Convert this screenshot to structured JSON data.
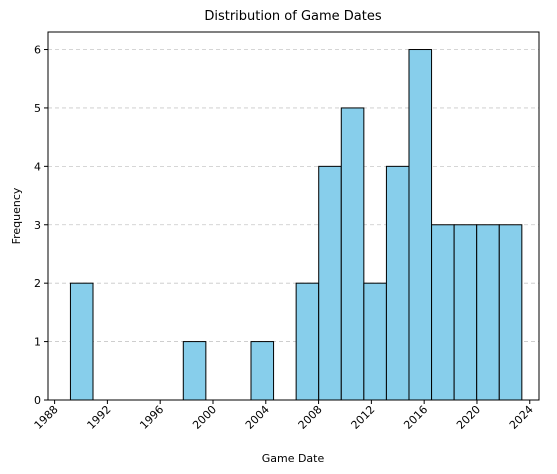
{
  "chart_data": {
    "type": "histogram",
    "title": "Distribution of Game Dates",
    "x_label": "Game Date",
    "y_label": "Frequency",
    "bins": [
      1989.2,
      1990.91,
      1992.62,
      1994.33,
      1996.04,
      1997.75,
      1999.46,
      2001.17,
      2002.88,
      2004.59,
      2006.3,
      2008.01,
      2009.72,
      2011.43,
      2013.14,
      2014.85,
      2016.56,
      2018.27,
      2019.98,
      2021.69,
      2023.4
    ],
    "values": [
      2,
      0,
      0,
      0,
      0,
      1,
      0,
      0,
      1,
      0,
      2,
      4,
      5,
      2,
      4,
      6,
      3,
      3,
      3,
      3
    ],
    "color": "#87ceeb",
    "edgecolor": "#000000",
    "xlim": [
      1987.5,
      2024.7
    ],
    "xticks": [
      1988,
      1992,
      1996,
      2000,
      2004,
      2008,
      2012,
      2016,
      2020,
      2024
    ],
    "ylim": [
      0,
      6.3
    ],
    "yticks": [
      0,
      1,
      2,
      3,
      4,
      5,
      6
    ],
    "grid": "y"
  }
}
